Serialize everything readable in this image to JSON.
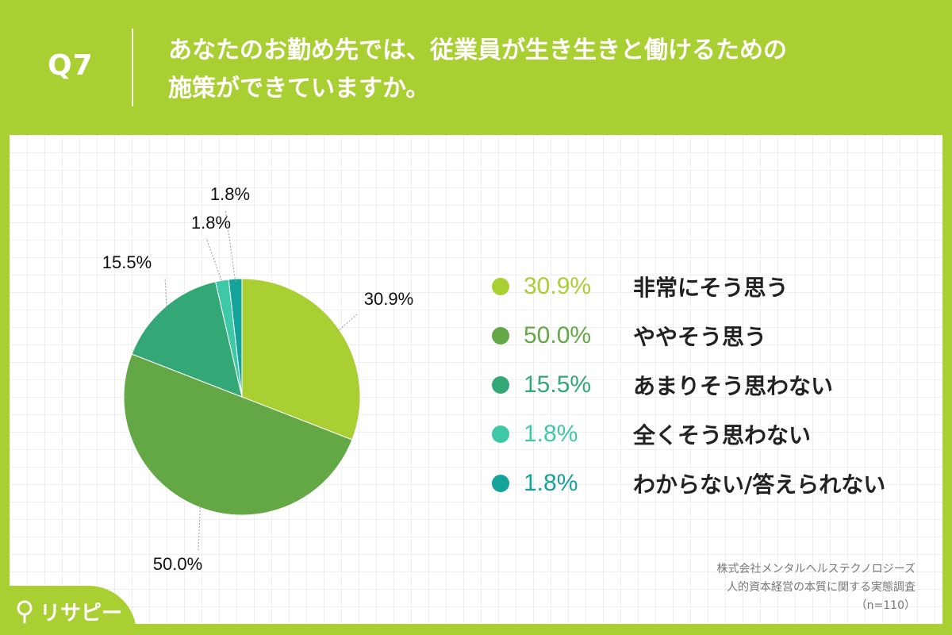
{
  "header": {
    "question_number": "Q7",
    "title_line1": "あなたのお勤め先では、従業員が生き生きと働けるための",
    "title_line2": "施策ができていますか。"
  },
  "chart_data": {
    "type": "pie",
    "title": "",
    "slices": [
      {
        "label": "非常にそう思う",
        "value": 30.9,
        "display": "30.9%",
        "color": "#a9cf33"
      },
      {
        "label": "ややそう思う",
        "value": 50.0,
        "display": "50.0%",
        "color": "#64a845"
      },
      {
        "label": "あまりそう思わない",
        "value": 15.5,
        "display": "15.5%",
        "color": "#33a876"
      },
      {
        "label": "全くそう思わない",
        "value": 1.8,
        "display": "1.8%",
        "color": "#3ec8a6"
      },
      {
        "label": "わからない/答えられない",
        "value": 1.8,
        "display": "1.8%",
        "color": "#14a39b"
      }
    ],
    "legend_position": "right"
  },
  "source": {
    "line1": "株式会社メンタルヘルステクノロジーズ",
    "line2": "人的資本経営の本質に関する実態調査",
    "line3": "（n=110）"
  },
  "logo": {
    "text": "リサピー"
  },
  "colors": {
    "background": "#a9cf33",
    "panel": "#ffffff"
  }
}
